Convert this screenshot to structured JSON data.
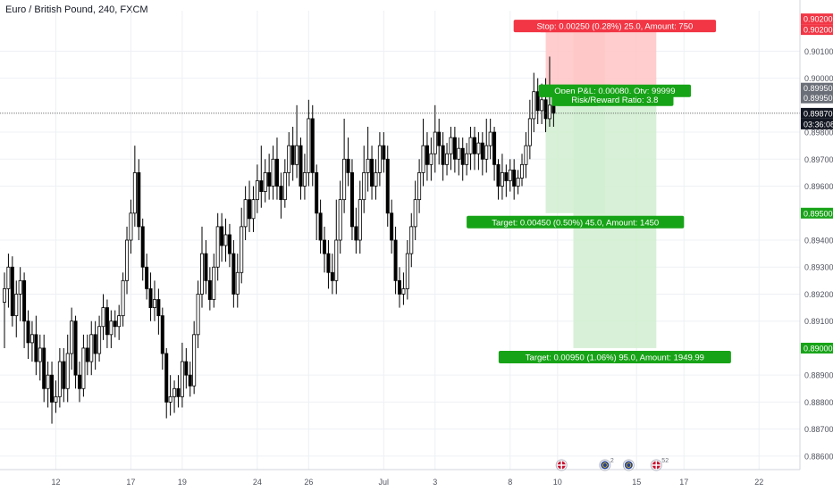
{
  "header": {
    "title": "Euro / British Pound, 240, FXCM"
  },
  "colors": {
    "up": "#ffffff",
    "down": "#000000",
    "wick": "#000000",
    "stop_zone": "#ffc8c8",
    "target_zone": "#d3eed3",
    "stop_label": "#f23645",
    "target_label": "#17a317",
    "grid": "#eef0f4",
    "price_line": "#4a4a4a"
  },
  "chart_data": {
    "type": "candlestick",
    "symbol": "EURGBP",
    "timeframe": "240",
    "y_axis": {
      "range": [
        0.8855,
        0.9025
      ],
      "ticks": [
        "0.90100",
        "0.90000",
        "0.89800",
        "0.89700",
        "0.89600",
        "0.89400",
        "0.89300",
        "0.89200",
        "0.89100",
        "0.88900",
        "0.88800",
        "0.88700",
        "0.88600"
      ]
    },
    "x_axis": {
      "ticks": [
        {
          "label": "12",
          "bar": 13
        },
        {
          "label": "17",
          "bar": 32
        },
        {
          "label": "19",
          "bar": 45
        },
        {
          "label": "24",
          "bar": 64
        },
        {
          "label": "26",
          "bar": 77
        },
        {
          "label": "Jul",
          "bar": 96
        },
        {
          "label": "3",
          "bar": 109
        },
        {
          "label": "8",
          "bar": 128
        },
        {
          "label": "10",
          "bar": 140
        },
        {
          "label": "15",
          "bar": 160
        },
        {
          "label": "17",
          "bar": 172
        },
        {
          "label": "22",
          "bar": 191
        }
      ]
    },
    "price_badges": [
      {
        "value": "0.90200",
        "kind": "stop"
      },
      {
        "value": "0.90200",
        "kind": "stop"
      },
      {
        "value": "0.89950",
        "kind": "entry"
      },
      {
        "value": "0.89950",
        "kind": "entry"
      },
      {
        "value": "0.89870",
        "kind": "current"
      },
      {
        "value": "03:36:08",
        "kind": "countdown"
      },
      {
        "value": "0.89500",
        "kind": "target"
      },
      {
        "value": "0.89000",
        "kind": "target"
      }
    ],
    "current_price": 0.8987,
    "candles": [
      [
        0.8917,
        0.8922,
        0.89,
        0.8928
      ],
      [
        0.8922,
        0.893,
        0.8915,
        0.8935
      ],
      [
        0.893,
        0.8912,
        0.8908,
        0.8934
      ],
      [
        0.8912,
        0.892,
        0.8904,
        0.8925
      ],
      [
        0.892,
        0.8925,
        0.891,
        0.893
      ],
      [
        0.8925,
        0.891,
        0.89,
        0.8928
      ],
      [
        0.891,
        0.8902,
        0.8896,
        0.8914
      ],
      [
        0.8902,
        0.8905,
        0.8895,
        0.891
      ],
      [
        0.8905,
        0.8895,
        0.889,
        0.8912
      ],
      [
        0.8895,
        0.89,
        0.8888,
        0.8905
      ],
      [
        0.89,
        0.8885,
        0.888,
        0.8905
      ],
      [
        0.8885,
        0.889,
        0.8878,
        0.8895
      ],
      [
        0.889,
        0.888,
        0.8872,
        0.8895
      ],
      [
        0.888,
        0.8882,
        0.8876,
        0.8888
      ],
      [
        0.8882,
        0.8895,
        0.8878,
        0.89
      ],
      [
        0.8895,
        0.8885,
        0.888,
        0.89
      ],
      [
        0.8885,
        0.8898,
        0.888,
        0.8905
      ],
      [
        0.8898,
        0.891,
        0.8892,
        0.8915
      ],
      [
        0.891,
        0.889,
        0.8885,
        0.8912
      ],
      [
        0.889,
        0.8885,
        0.888,
        0.8895
      ],
      [
        0.8885,
        0.89,
        0.8882,
        0.8905
      ],
      [
        0.89,
        0.8895,
        0.889,
        0.8905
      ],
      [
        0.8895,
        0.8905,
        0.889,
        0.891
      ],
      [
        0.8905,
        0.8898,
        0.8892,
        0.891
      ],
      [
        0.8898,
        0.8908,
        0.8895,
        0.8912
      ],
      [
        0.8908,
        0.8915,
        0.8903,
        0.892
      ],
      [
        0.8915,
        0.8905,
        0.89,
        0.8918
      ],
      [
        0.8905,
        0.891,
        0.89,
        0.8914
      ],
      [
        0.891,
        0.8908,
        0.8904,
        0.8914
      ],
      [
        0.8908,
        0.8912,
        0.8903,
        0.8916
      ],
      [
        0.8912,
        0.8925,
        0.8908,
        0.8928
      ],
      [
        0.8925,
        0.894,
        0.892,
        0.8945
      ],
      [
        0.894,
        0.895,
        0.8935,
        0.8955
      ],
      [
        0.895,
        0.8965,
        0.8945,
        0.8975
      ],
      [
        0.8965,
        0.8945,
        0.894,
        0.897
      ],
      [
        0.8945,
        0.893,
        0.8925,
        0.8948
      ],
      [
        0.893,
        0.8922,
        0.8918,
        0.8935
      ],
      [
        0.8922,
        0.8915,
        0.891,
        0.8928
      ],
      [
        0.8915,
        0.8918,
        0.891,
        0.8925
      ],
      [
        0.8918,
        0.8912,
        0.8905,
        0.8922
      ],
      [
        0.8912,
        0.8898,
        0.8892,
        0.8915
      ],
      [
        0.8898,
        0.888,
        0.8874,
        0.89
      ],
      [
        0.888,
        0.8882,
        0.8875,
        0.889
      ],
      [
        0.8882,
        0.8885,
        0.8876,
        0.8888
      ],
      [
        0.8885,
        0.8882,
        0.8878,
        0.889
      ],
      [
        0.8882,
        0.8895,
        0.8878,
        0.8902
      ],
      [
        0.8895,
        0.889,
        0.8885,
        0.89
      ],
      [
        0.889,
        0.8886,
        0.8882,
        0.8895
      ],
      [
        0.8886,
        0.8905,
        0.8883,
        0.891
      ],
      [
        0.8905,
        0.892,
        0.89,
        0.8925
      ],
      [
        0.892,
        0.8935,
        0.8915,
        0.8945
      ],
      [
        0.8935,
        0.8925,
        0.892,
        0.894
      ],
      [
        0.8925,
        0.8918,
        0.8914,
        0.893
      ],
      [
        0.8918,
        0.893,
        0.8915,
        0.8935
      ],
      [
        0.893,
        0.8945,
        0.8925,
        0.895
      ],
      [
        0.8945,
        0.8938,
        0.8932,
        0.895
      ],
      [
        0.8938,
        0.8942,
        0.8932,
        0.8948
      ],
      [
        0.8942,
        0.8935,
        0.893,
        0.8946
      ],
      [
        0.8935,
        0.892,
        0.8915,
        0.894
      ],
      [
        0.892,
        0.8928,
        0.8915,
        0.8935
      ],
      [
        0.8928,
        0.8945,
        0.8924,
        0.8952
      ],
      [
        0.8945,
        0.8955,
        0.894,
        0.896
      ],
      [
        0.8955,
        0.8948,
        0.8943,
        0.8962
      ],
      [
        0.8948,
        0.8955,
        0.8943,
        0.896
      ],
      [
        0.8955,
        0.8962,
        0.895,
        0.8968
      ],
      [
        0.8962,
        0.8958,
        0.8952,
        0.8975
      ],
      [
        0.8958,
        0.8965,
        0.8954,
        0.897
      ],
      [
        0.8965,
        0.896,
        0.8955,
        0.8972
      ],
      [
        0.896,
        0.897,
        0.8955,
        0.8975
      ],
      [
        0.897,
        0.896,
        0.8955,
        0.8978
      ],
      [
        0.896,
        0.8955,
        0.8948,
        0.8965
      ],
      [
        0.8955,
        0.8965,
        0.8952,
        0.897
      ],
      [
        0.8965,
        0.8975,
        0.896,
        0.898
      ],
      [
        0.8975,
        0.8968,
        0.8962,
        0.8982
      ],
      [
        0.8968,
        0.8975,
        0.8963,
        0.899
      ],
      [
        0.8975,
        0.896,
        0.8955,
        0.8978
      ],
      [
        0.896,
        0.8965,
        0.8955,
        0.8972
      ],
      [
        0.8965,
        0.8985,
        0.896,
        0.8992
      ],
      [
        0.8985,
        0.8965,
        0.896,
        0.899
      ],
      [
        0.8965,
        0.895,
        0.894,
        0.8968
      ],
      [
        0.895,
        0.894,
        0.8935,
        0.8955
      ],
      [
        0.894,
        0.8935,
        0.8928,
        0.8945
      ],
      [
        0.8935,
        0.8928,
        0.8922,
        0.894
      ],
      [
        0.8928,
        0.8925,
        0.892,
        0.8935
      ],
      [
        0.8925,
        0.894,
        0.892,
        0.8955
      ],
      [
        0.894,
        0.8955,
        0.8935,
        0.8962
      ],
      [
        0.8955,
        0.897,
        0.895,
        0.8985
      ],
      [
        0.897,
        0.8965,
        0.896,
        0.8978
      ],
      [
        0.8965,
        0.8945,
        0.894,
        0.897
      ],
      [
        0.8945,
        0.894,
        0.8935,
        0.8952
      ],
      [
        0.894,
        0.8955,
        0.8935,
        0.8962
      ],
      [
        0.8955,
        0.8965,
        0.895,
        0.8975
      ],
      [
        0.8965,
        0.897,
        0.8958,
        0.8982
      ],
      [
        0.897,
        0.896,
        0.8955,
        0.8975
      ],
      [
        0.896,
        0.8965,
        0.8955,
        0.897
      ],
      [
        0.8965,
        0.8975,
        0.896,
        0.898
      ],
      [
        0.8975,
        0.897,
        0.8965,
        0.898
      ],
      [
        0.897,
        0.895,
        0.8945,
        0.8975
      ],
      [
        0.895,
        0.894,
        0.8935,
        0.8955
      ],
      [
        0.894,
        0.8925,
        0.892,
        0.8945
      ],
      [
        0.8925,
        0.892,
        0.8915,
        0.893
      ],
      [
        0.892,
        0.8922,
        0.8916,
        0.8928
      ],
      [
        0.8922,
        0.8935,
        0.8918,
        0.894
      ],
      [
        0.8935,
        0.8945,
        0.893,
        0.895
      ],
      [
        0.8945,
        0.8955,
        0.894,
        0.8962
      ],
      [
        0.8955,
        0.8965,
        0.895,
        0.897
      ],
      [
        0.8965,
        0.8975,
        0.896,
        0.8985
      ],
      [
        0.8975,
        0.8968,
        0.8962,
        0.898
      ],
      [
        0.8968,
        0.8972,
        0.8962,
        0.8978
      ],
      [
        0.8972,
        0.898,
        0.8965,
        0.899
      ],
      [
        0.898,
        0.8975,
        0.8968,
        0.8985
      ],
      [
        0.8975,
        0.8968,
        0.8962,
        0.898
      ],
      [
        0.8968,
        0.8972,
        0.8964,
        0.8976
      ],
      [
        0.8972,
        0.8978,
        0.8966,
        0.8982
      ],
      [
        0.8978,
        0.897,
        0.8965,
        0.8982
      ],
      [
        0.897,
        0.8974,
        0.8964,
        0.8978
      ],
      [
        0.8974,
        0.8968,
        0.8962,
        0.8978
      ],
      [
        0.8968,
        0.8972,
        0.8964,
        0.8976
      ],
      [
        0.8972,
        0.8978,
        0.8966,
        0.8982
      ],
      [
        0.8978,
        0.8972,
        0.8966,
        0.8982
      ],
      [
        0.8972,
        0.8976,
        0.8966,
        0.898
      ],
      [
        0.8976,
        0.897,
        0.8964,
        0.898
      ],
      [
        0.897,
        0.8975,
        0.8965,
        0.8985
      ],
      [
        0.8975,
        0.898,
        0.897,
        0.8985
      ],
      [
        0.898,
        0.8968,
        0.8962,
        0.8982
      ],
      [
        0.8968,
        0.896,
        0.8955,
        0.897
      ],
      [
        0.896,
        0.8965,
        0.8955,
        0.8972
      ],
      [
        0.8965,
        0.8962,
        0.8956,
        0.8968
      ],
      [
        0.8962,
        0.8966,
        0.8958,
        0.897
      ],
      [
        0.8966,
        0.896,
        0.8955,
        0.897
      ],
      [
        0.896,
        0.8963,
        0.8957,
        0.8966
      ],
      [
        0.8963,
        0.8968,
        0.896,
        0.8972
      ],
      [
        0.8968,
        0.8975,
        0.8963,
        0.898
      ],
      [
        0.8975,
        0.8985,
        0.897,
        0.8992
      ],
      [
        0.8985,
        0.8995,
        0.898,
        0.9002
      ],
      [
        0.8995,
        0.8988,
        0.8983,
        0.9
      ],
      [
        0.8988,
        0.8992,
        0.8983,
        0.8998
      ],
      [
        0.8992,
        0.8985,
        0.898,
        0.9
      ],
      [
        0.8985,
        0.899,
        0.8982,
        0.9008
      ],
      [
        0.899,
        0.8987,
        0.8982,
        0.8995
      ]
    ],
    "positions": [
      {
        "side": "long",
        "zone": {
          "bar_start": 144,
          "bar_end": 165
        },
        "entry_price": 0.8995,
        "stop_price": 0.902,
        "target_price": 0.89,
        "stop_label": "Stop: 0.00250 (0.28%) 25.0, Amount: 750",
        "open_label": "Open P&L: 0.00080, Qty: 99999",
        "rr_label": "Risk/Reward Ratio: 3.8",
        "target_label": "Target: 0.00950 (1.06%) 95.0, Amount: 1949.99"
      },
      {
        "side": "long",
        "zone": {
          "bar_start": 137,
          "bar_end": 152
        },
        "entry_price": 0.8995,
        "stop_price": 0.902,
        "target_price": 0.895,
        "stop_label": "Stop: 0.0025(",
        "open_label": "Open P&L: 0.0",
        "rr_label": "Risk/Rew",
        "target_label": "Target: 0.00450 (0.50%) 45.0, Amount: 1450"
      }
    ],
    "event_icons": [
      {
        "bar": 141,
        "icon": "gb-flag-icon",
        "count": ""
      },
      {
        "bar": 152,
        "icon": "eu-event-icon",
        "count": "2"
      },
      {
        "bar": 158,
        "icon": "eu-flag-icon",
        "count": ""
      },
      {
        "bar": 165,
        "icon": "gb-flag-icon",
        "count": "52"
      }
    ]
  }
}
